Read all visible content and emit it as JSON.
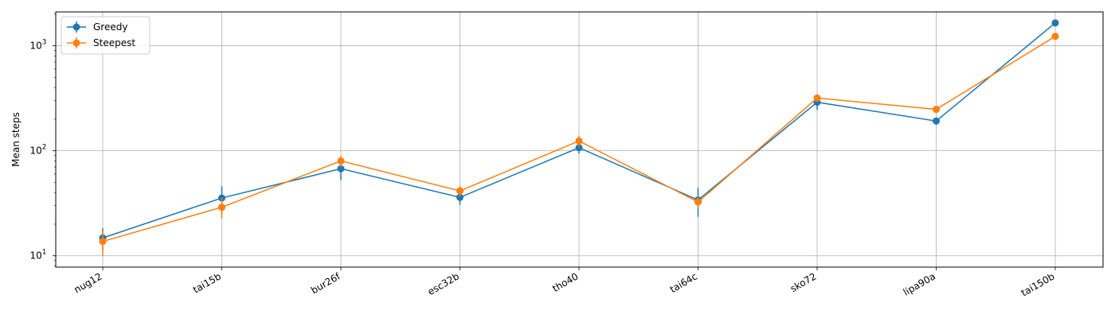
{
  "chart_data": {
    "type": "line",
    "title": "",
    "xlabel": "",
    "ylabel": "Mean steps",
    "yscale": "log",
    "ylim": [
      7.8,
      2100
    ],
    "grid": true,
    "legend_position": "top-left",
    "categories": [
      "nug12",
      "tai15b",
      "bur26f",
      "esc32b",
      "tho40",
      "tai64c",
      "sko72",
      "lipa90a",
      "tai150b"
    ],
    "y_ticks": [
      {
        "value": 10,
        "base": "10",
        "exp": "1"
      },
      {
        "value": 100,
        "base": "10",
        "exp": "2"
      },
      {
        "value": 1000,
        "base": "10",
        "exp": "3"
      }
    ],
    "series": [
      {
        "name": "Greedy",
        "color": "#1f77b4",
        "values": [
          14.8,
          35.5,
          67.5,
          36.0,
          107.0,
          34.0,
          290.0,
          192.0,
          1650.0
        ],
        "errors": [
          3.5,
          10.5,
          15.0,
          5.5,
          13.0,
          10.5,
          45.0,
          15.0,
          90.0
        ]
      },
      {
        "name": "Steepest",
        "color": "#ff7f0e",
        "values": [
          13.7,
          29.0,
          80.0,
          41.5,
          124.0,
          32.5,
          318.0,
          248.0,
          1230.0
        ],
        "errors": [
          3.8,
          6.5,
          10.0,
          5.0,
          15.0,
          4.0,
          25.0,
          20.0,
          60.0
        ]
      }
    ]
  }
}
